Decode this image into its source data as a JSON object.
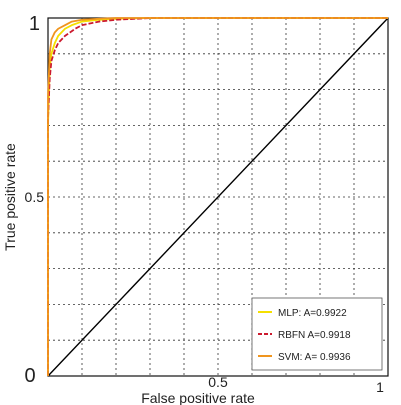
{
  "chart_data": {
    "type": "line",
    "xlabel": "False positive rate",
    "ylabel": "True positive rate",
    "xlim": [
      0,
      1
    ],
    "ylim": [
      0,
      1
    ],
    "grid": true,
    "legend_position": "bottom-right",
    "x_ticks": [
      {
        "value": 0,
        "label": "0"
      },
      {
        "value": 0.5,
        "label": "0.5"
      },
      {
        "value": 1,
        "label": "1"
      }
    ],
    "y_ticks": [
      {
        "value": 0,
        "label": "0"
      },
      {
        "value": 0.5,
        "label": "0.5"
      },
      {
        "value": 1,
        "label": "1"
      }
    ],
    "series": [
      {
        "name": "MLP: A=0.9922",
        "color": "#f5e000",
        "dash": "solid",
        "x": [
          0,
          0,
          0.005,
          0.01,
          0.02,
          0.03,
          0.05,
          0.07,
          0.1,
          0.15,
          0.2,
          0.3,
          0.5,
          0.75,
          1.0
        ],
        "y": [
          0,
          0.7,
          0.86,
          0.9,
          0.93,
          0.95,
          0.97,
          0.98,
          0.99,
          0.995,
          0.998,
          1.0,
          1.0,
          1.0,
          1.0
        ]
      },
      {
        "name": "RBFN A=0.9918",
        "color": "#cc1a2e",
        "dash": "dashed",
        "x": [
          0,
          0,
          0.005,
          0.01,
          0.02,
          0.03,
          0.05,
          0.08,
          0.1,
          0.15,
          0.2,
          0.3,
          0.5,
          0.75,
          1.0
        ],
        "y": [
          0,
          0.72,
          0.83,
          0.88,
          0.91,
          0.93,
          0.95,
          0.97,
          0.98,
          0.99,
          0.995,
          1.0,
          1.0,
          1.0,
          1.0
        ]
      },
      {
        "name": "SVM: A= 0.9936",
        "color": "#f0951e",
        "dash": "solid",
        "x": [
          0,
          0,
          0.005,
          0.01,
          0.02,
          0.03,
          0.05,
          0.07,
          0.1,
          0.15,
          0.2,
          0.3,
          0.5,
          0.75,
          1.0
        ],
        "y": [
          0,
          0.78,
          0.9,
          0.94,
          0.96,
          0.97,
          0.98,
          0.99,
          0.995,
          0.998,
          1.0,
          1.0,
          1.0,
          1.0,
          1.0
        ]
      },
      {
        "name": "",
        "color": "#000000",
        "dash": "solid",
        "x": [
          0,
          1
        ],
        "y": [
          0,
          1
        ]
      }
    ]
  }
}
